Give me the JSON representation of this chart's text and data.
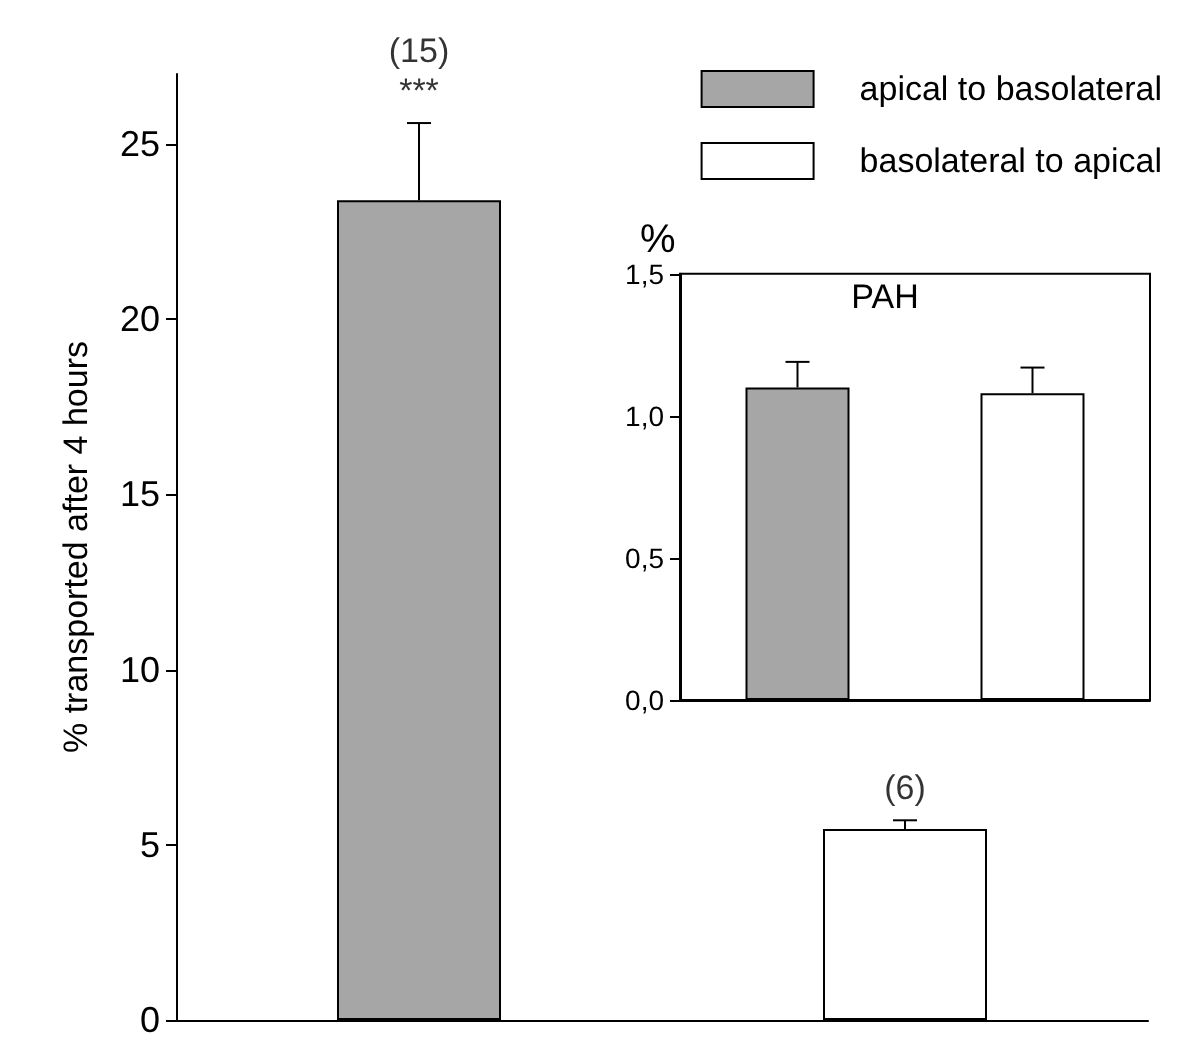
{
  "chart_data": [
    {
      "type": "bar",
      "ylabel": "% transported after 4 hours",
      "categories": [
        null,
        null
      ],
      "ylim": [
        0,
        27
      ],
      "yticks": [
        0,
        5,
        10,
        15,
        20,
        25
      ],
      "legend": "top right",
      "grid": false,
      "series": [
        {
          "name": "apical to basolateral",
          "color": "#a6a6a6",
          "values": [
            23.4,
            null
          ],
          "errors": [
            2.2,
            null
          ]
        },
        {
          "name": "basolateral to apical",
          "color": "#ffffff",
          "values": [
            null,
            5.45
          ],
          "errors": [
            null,
            0.25
          ]
        }
      ],
      "annotations": [
        "(15)\n***",
        "(6)"
      ]
    },
    {
      "type": "bar",
      "title": "PAH",
      "ylabel": "%",
      "categories": [
        null,
        null
      ],
      "ylim": [
        0,
        1.5
      ],
      "yticks": [
        {
          "value": 0,
          "label": "0,0"
        },
        {
          "value": 0.5,
          "label": "0,5"
        },
        {
          "value": 1,
          "label": "1,0"
        },
        {
          "value": 1.5,
          "label": "1,5"
        }
      ],
      "grid": false,
      "series": [
        {
          "color": "#a6a6a6",
          "values": [
            1.1,
            null
          ],
          "errors": [
            0.09,
            null
          ]
        },
        {
          "color": "#ffffff",
          "values": [
            null,
            1.08
          ],
          "errors": [
            null,
            0.09
          ]
        }
      ]
    }
  ]
}
